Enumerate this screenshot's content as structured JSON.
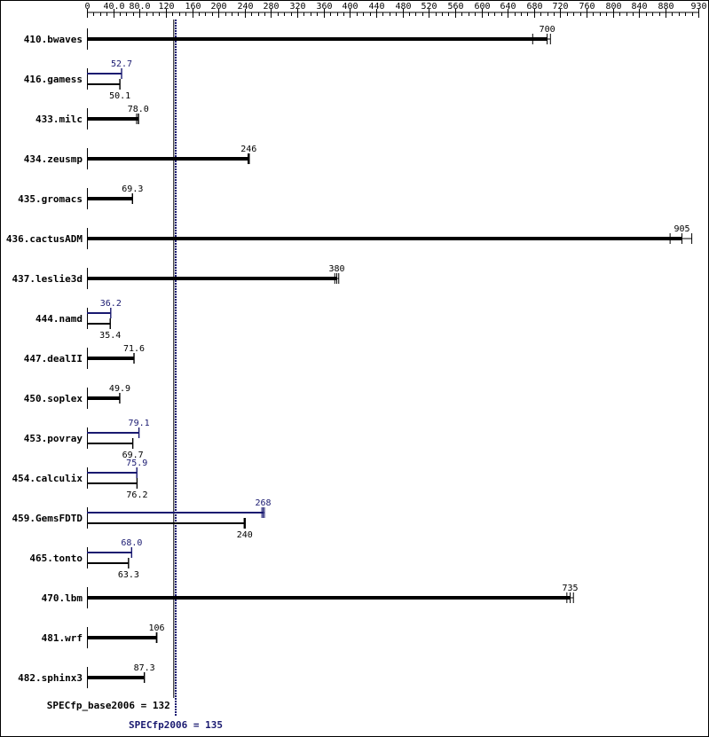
{
  "chart_data": {
    "type": "bar",
    "orientation": "horizontal",
    "xlim": [
      0,
      930
    ],
    "ticks": [
      {
        "value": 0,
        "label": "0"
      },
      {
        "value": 40,
        "label": "40.0"
      },
      {
        "value": 80,
        "label": "80.0"
      },
      {
        "value": 120,
        "label": "120"
      },
      {
        "value": 160,
        "label": "160"
      },
      {
        "value": 200,
        "label": "200"
      },
      {
        "value": 240,
        "label": "240"
      },
      {
        "value": 280,
        "label": "280"
      },
      {
        "value": 320,
        "label": "320"
      },
      {
        "value": 360,
        "label": "360"
      },
      {
        "value": 400,
        "label": "400"
      },
      {
        "value": 440,
        "label": "440"
      },
      {
        "value": 480,
        "label": "480"
      },
      {
        "value": 520,
        "label": "520"
      },
      {
        "value": 560,
        "label": "560"
      },
      {
        "value": 600,
        "label": "600"
      },
      {
        "value": 640,
        "label": "640"
      },
      {
        "value": 680,
        "label": "680"
      },
      {
        "value": 720,
        "label": "720"
      },
      {
        "value": 760,
        "label": "760"
      },
      {
        "value": 800,
        "label": "800"
      },
      {
        "value": 840,
        "label": "840"
      },
      {
        "value": 880,
        "label": "880"
      },
      {
        "value": 930,
        "label": "930"
      }
    ],
    "minor_tick_step": 10,
    "colors": {
      "base": "#000000",
      "peak": "#191970"
    },
    "benchmarks": [
      {
        "name": "410.bwaves",
        "base": 700,
        "base_label": "700",
        "base_runs": [
          678,
          700,
          705
        ]
      },
      {
        "name": "416.gamess",
        "base": 50.1,
        "base_label": "50.1",
        "base_runs": [
          49.8,
          50.1,
          50.3
        ],
        "peak": 52.7,
        "peak_label": "52.7",
        "peak_runs": [
          52.4,
          52.7,
          52.9
        ]
      },
      {
        "name": "433.milc",
        "base": 78.0,
        "base_label": "78.0",
        "base_runs": [
          75.5,
          78.0,
          78.6
        ]
      },
      {
        "name": "434.zeusmp",
        "base": 246,
        "base_label": "246",
        "base_runs": [
          245,
          246,
          247
        ]
      },
      {
        "name": "435.gromacs",
        "base": 69.3,
        "base_label": "69.3",
        "base_runs": [
          69.0,
          69.3,
          69.5
        ]
      },
      {
        "name": "436.cactusADM",
        "base": 905,
        "base_label": "905",
        "base_runs": [
          887,
          905,
          920
        ]
      },
      {
        "name": "437.leslie3d",
        "base": 380,
        "base_label": "380",
        "base_runs": [
          377,
          380,
          383
        ]
      },
      {
        "name": "444.namd",
        "base": 35.4,
        "base_label": "35.4",
        "base_runs": [
          35.2,
          35.4,
          35.6
        ],
        "peak": 36.2,
        "peak_label": "36.2",
        "peak_runs": [
          36.0,
          36.2,
          36.4
        ]
      },
      {
        "name": "447.dealII",
        "base": 71.6,
        "base_label": "71.6",
        "base_runs": [
          71.3,
          71.6,
          71.8
        ]
      },
      {
        "name": "450.soplex",
        "base": 49.9,
        "base_label": "49.9",
        "base_runs": [
          49.6,
          49.9,
          50.1
        ]
      },
      {
        "name": "453.povray",
        "base": 69.7,
        "base_label": "69.7",
        "base_runs": [
          69.4,
          69.7,
          69.9
        ],
        "peak": 79.1,
        "peak_label": "79.1",
        "peak_runs": [
          78.8,
          79.1,
          79.3
        ]
      },
      {
        "name": "454.calculix",
        "base": 76.2,
        "base_label": "76.2",
        "base_runs": [
          75.9,
          76.2,
          76.4
        ],
        "peak": 75.9,
        "peak_label": "75.9",
        "peak_runs": [
          75.6,
          75.9,
          76.1
        ]
      },
      {
        "name": "459.GemsFDTD",
        "base": 240,
        "base_label": "240",
        "base_runs": [
          239,
          240,
          241
        ],
        "peak": 268,
        "peak_label": "268",
        "peak_runs": [
          266,
          268,
          270
        ]
      },
      {
        "name": "465.tonto",
        "base": 63.3,
        "base_label": "63.3",
        "base_runs": [
          63.0,
          63.3,
          63.5
        ],
        "peak": 68.0,
        "peak_label": "68.0",
        "peak_runs": [
          67.7,
          68.0,
          68.2
        ]
      },
      {
        "name": "470.lbm",
        "base": 735,
        "base_label": "735",
        "base_runs": [
          730,
          735,
          740
        ]
      },
      {
        "name": "481.wrf",
        "base": 106,
        "base_label": "106",
        "base_runs": [
          105.5,
          106,
          106.5
        ]
      },
      {
        "name": "482.sphinx3",
        "base": 87.3,
        "base_label": "87.3",
        "base_runs": [
          87.0,
          87.3,
          87.5
        ]
      }
    ],
    "summary": {
      "base_label": "SPECfp_base2006 = 132",
      "base_value": 132,
      "peak_label": "SPECfp2006 = 135",
      "peak_value": 135
    }
  }
}
